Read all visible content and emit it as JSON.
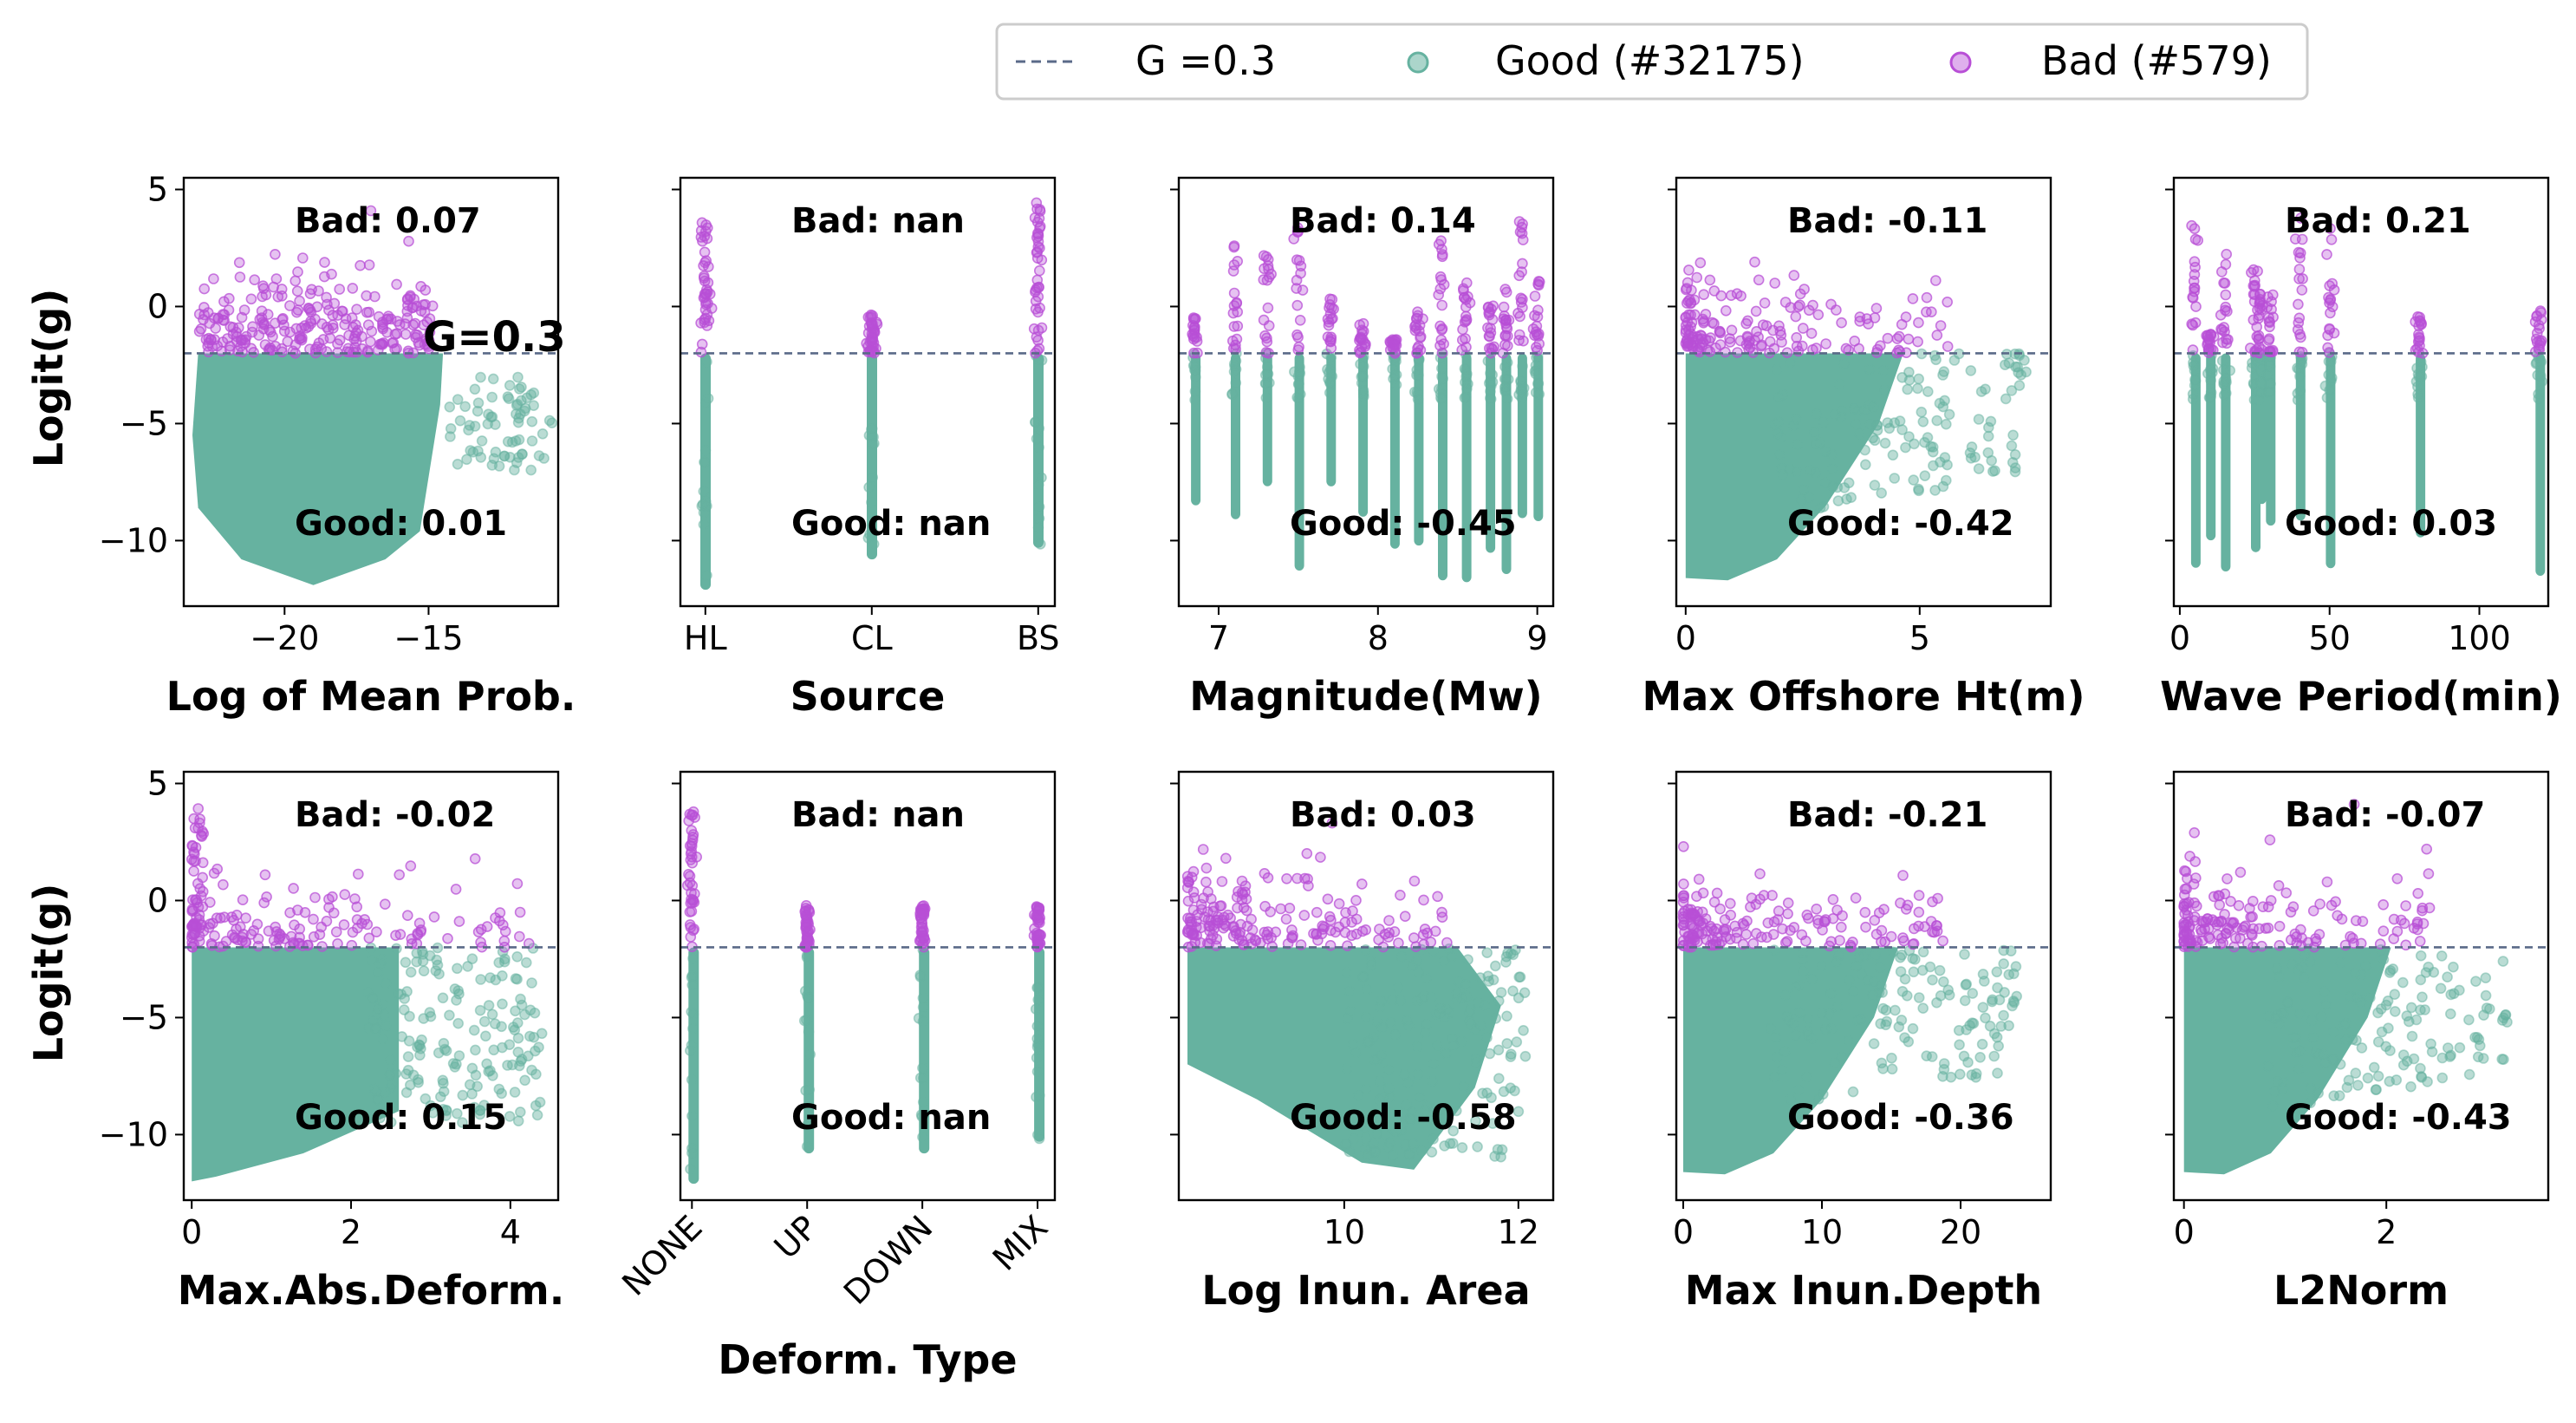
{
  "colors": {
    "good": "#66b2a0",
    "bad": "#b84fd6",
    "threshold": "#5a6a88",
    "frame": "#000000",
    "legend_border": "#cccccc"
  },
  "legend": {
    "threshold_label": "G =0.3",
    "good_label": "Good (#32175)",
    "bad_label": "Bad (#579)"
  },
  "g_annotation": "G=0.3",
  "ylabel": "Logit(g)",
  "chart_data": [
    {
      "type": "scatter",
      "xlabel": "Log of Mean Prob.",
      "xlim": [
        -23.5,
        -10.5
      ],
      "xticks": [
        -20,
        -15
      ],
      "xtick_labels": [
        "−20",
        "−15"
      ],
      "ylim": [
        -12.8,
        5.5
      ],
      "yticks": [
        5,
        0,
        -5,
        -10
      ],
      "threshold_y": -2,
      "bad_label": "Bad: 0.07",
      "good_label": "Good: 0.01",
      "shape": "dense",
      "x_range": [
        -23,
        -15
      ]
    },
    {
      "type": "scatter",
      "xlabel": "Source",
      "categories": [
        "HL",
        "CL",
        "BS"
      ],
      "xlim": [
        -0.15,
        2.1
      ],
      "ylim": [
        -12.8,
        5.5
      ],
      "yticks": [
        5,
        0,
        -5,
        -10
      ],
      "threshold_y": -2,
      "bad_label": "Bad: nan",
      "good_label": "Good: nan",
      "shape": "categorical"
    },
    {
      "type": "scatter",
      "xlabel": "Magnitude(Mw)",
      "xlim": [
        6.75,
        9.1
      ],
      "xticks": [
        7,
        8,
        9
      ],
      "xtick_labels": [
        "7",
        "8",
        "9"
      ],
      "ylim": [
        -12.8,
        5.5
      ],
      "yticks": [
        5,
        0,
        -5,
        -10
      ],
      "threshold_y": -2,
      "bad_label": "Bad: 0.14",
      "good_label": "Good: -0.45",
      "shape": "stripes",
      "stripes": [
        6.85,
        7.1,
        7.3,
        7.5,
        7.7,
        7.9,
        8.1,
        8.25,
        8.4,
        8.55,
        8.7,
        8.8,
        8.9,
        9.0
      ]
    },
    {
      "type": "scatter",
      "xlabel": "Max Offshore Ht(m)",
      "xlim": [
        -0.2,
        7.8
      ],
      "xticks": [
        0,
        5
      ],
      "xtick_labels": [
        "0",
        "5"
      ],
      "ylim": [
        -12.8,
        5.5
      ],
      "yticks": [
        5,
        0,
        -5,
        -10
      ],
      "threshold_y": -2,
      "bad_label": "Bad: -0.11",
      "good_label": "Good: -0.42",
      "shape": "decay",
      "x_range": [
        0,
        7.5
      ]
    },
    {
      "type": "scatter",
      "xlabel": "Wave Period(min)",
      "xlim": [
        -2,
        123
      ],
      "xticks": [
        0,
        50,
        100
      ],
      "xtick_labels": [
        "0",
        "50",
        "100"
      ],
      "ylim": [
        -12.8,
        5.5
      ],
      "yticks": [
        5,
        0,
        -5,
        -10
      ],
      "threshold_y": -2,
      "bad_label": "Bad: 0.21",
      "good_label": "Good: 0.03",
      "shape": "stripes",
      "stripes": [
        5,
        10,
        15,
        25,
        27,
        30,
        40,
        50,
        80,
        120
      ]
    },
    {
      "type": "scatter",
      "xlabel": "Max.Abs.Deform.",
      "xlim": [
        -0.1,
        4.6
      ],
      "xticks": [
        0,
        2,
        4
      ],
      "xtick_labels": [
        "0",
        "2",
        "4"
      ],
      "ylim": [
        -12.8,
        5.5
      ],
      "yticks": [
        5,
        0,
        -5,
        -10
      ],
      "threshold_y": -2,
      "bad_label": "Bad: -0.02",
      "good_label": "Good: 0.15",
      "shape": "wide",
      "x_range": [
        0,
        4.4
      ]
    },
    {
      "type": "scatter",
      "xlabel": "Deform. Type",
      "categories": [
        "NONE",
        "UP",
        "DOWN",
        "MIX"
      ],
      "xlim": [
        -0.1,
        3.15
      ],
      "ylim": [
        -12.8,
        5.5
      ],
      "yticks": [
        5,
        0,
        -5,
        -10
      ],
      "threshold_y": -2,
      "bad_label": "Bad: nan",
      "good_label": "Good: nan",
      "shape": "categorical",
      "rotate_ticks": true
    },
    {
      "type": "scatter",
      "xlabel": "Log Inun. Area",
      "xlim": [
        8.1,
        12.4
      ],
      "xticks": [
        10,
        12
      ],
      "xtick_labels": [
        "10",
        "12"
      ],
      "ylim": [
        -12.8,
        5.5
      ],
      "yticks": [
        5,
        0,
        -5,
        -10
      ],
      "threshold_y": -2,
      "bad_label": "Bad: 0.03",
      "good_label": "Good: -0.58",
      "shape": "slope",
      "x_range": [
        8.2,
        12.1
      ]
    },
    {
      "type": "scatter",
      "xlabel": "Max Inun.Depth",
      "xlim": [
        -0.5,
        26.5
      ],
      "xticks": [
        0,
        10,
        20
      ],
      "xtick_labels": [
        "0",
        "10",
        "20"
      ],
      "ylim": [
        -12.8,
        5.5
      ],
      "yticks": [
        5,
        0,
        -5,
        -10
      ],
      "threshold_y": -2,
      "bad_label": "Bad: -0.21",
      "good_label": "Good: -0.36",
      "shape": "decay",
      "x_range": [
        0,
        25
      ]
    },
    {
      "type": "scatter",
      "xlabel": "L2Norm",
      "xlim": [
        -0.1,
        3.6
      ],
      "xticks": [
        0,
        2
      ],
      "xtick_labels": [
        "0",
        "2"
      ],
      "ylim": [
        -12.8,
        5.5
      ],
      "yticks": [
        5,
        0,
        -5,
        -10
      ],
      "threshold_y": -2,
      "bad_label": "Bad: -0.07",
      "good_label": "Good: -0.43",
      "shape": "decay",
      "x_range": [
        0,
        3.3
      ]
    }
  ]
}
